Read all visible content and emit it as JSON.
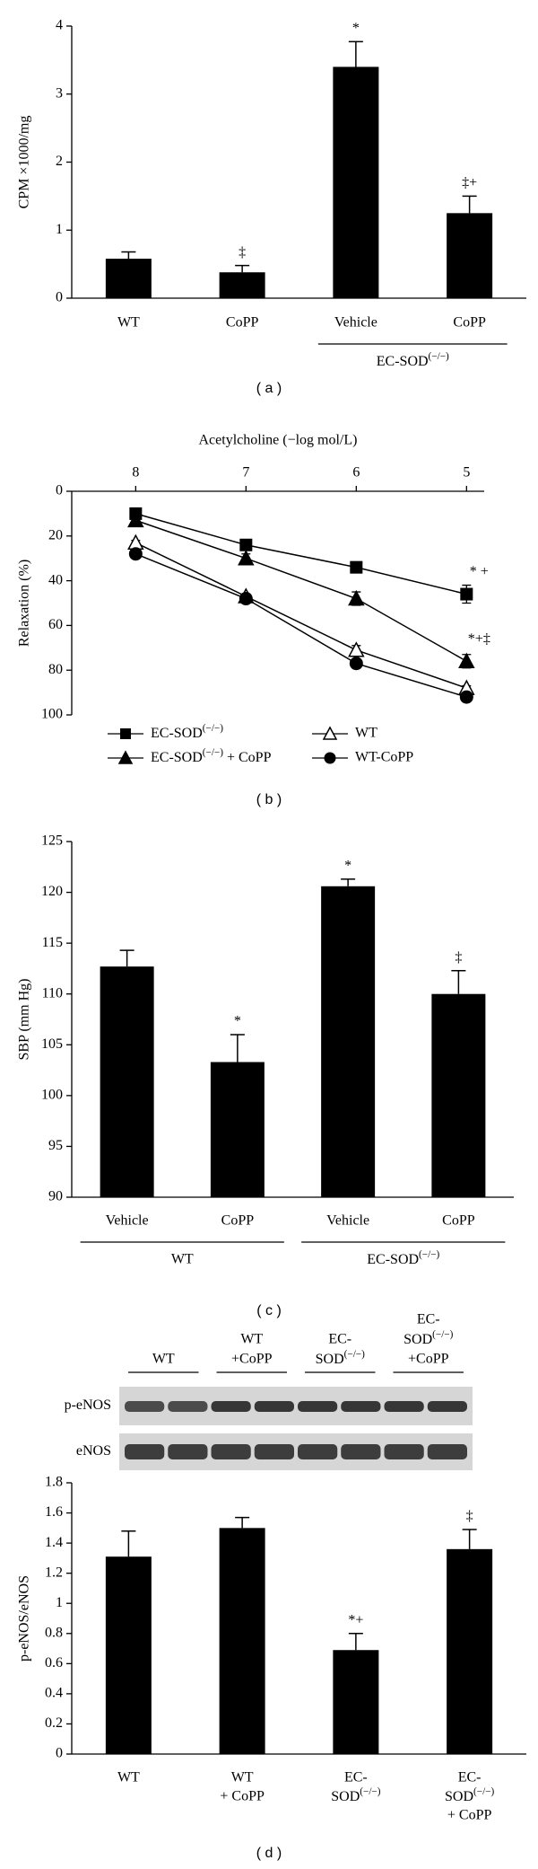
{
  "chart_data": [
    {
      "type": "bar",
      "ylabel": "CPM ×1000/mg",
      "panel_label": "( a )",
      "categories": [
        [
          "WT"
        ],
        [
          "CoPP"
        ],
        [
          "Vehicle"
        ],
        [
          "CoPP"
        ]
      ],
      "values": [
        0.58,
        0.38,
        3.4,
        1.25
      ],
      "errors": [
        0.1,
        0.1,
        0.37,
        0.25
      ],
      "annotations": [
        null,
        "‡",
        "*",
        "‡+"
      ],
      "groups": [
        {
          "label": "EC-SOD(−/−)",
          "span": [
            2,
            3
          ]
        }
      ],
      "color": "#000000",
      "ylim": [
        0,
        4
      ],
      "yticks": [
        0,
        1,
        2,
        3,
        4
      ]
    },
    {
      "type": "line",
      "title": "Acetylcholine (−log mol/L)",
      "ylabel": "Relaxation (%)",
      "panel_label": "( b )",
      "x": [
        8,
        7,
        6,
        5
      ],
      "xlim": [
        8.58,
        4.84
      ],
      "xticks": [
        8,
        7,
        6,
        5
      ],
      "ylim": [
        100,
        0
      ],
      "yticks": [
        0,
        20,
        40,
        60,
        80,
        100
      ],
      "series": [
        {
          "name": "EC-SOD(−/−)",
          "color": "#000000",
          "marker": "square",
          "values": [
            10,
            24,
            34,
            46
          ],
          "errors": [
            1,
            2,
            1,
            4
          ],
          "annotation": "* +"
        },
        {
          "name": "EC-SOD(−/−) + CoPP",
          "color": "#000000",
          "marker": "triangle",
          "values": [
            13,
            30,
            48,
            76
          ],
          "errors": [
            1,
            2,
            3,
            3
          ],
          "annotation": "*+‡"
        },
        {
          "name": "WT",
          "color": "#000000",
          "marker": "triangle-open",
          "values": [
            23,
            47,
            71,
            88
          ],
          "errors": [
            1,
            1,
            2,
            1
          ]
        },
        {
          "name": "WT-CoPP",
          "color": "#000000",
          "marker": "circle",
          "values": [
            28,
            48,
            77,
            92
          ],
          "errors": [
            1,
            1,
            2,
            2
          ]
        }
      ]
    },
    {
      "type": "bar",
      "ylabel": "SBP (mm Hg)",
      "panel_label": "( c )",
      "categories": [
        [
          "Vehicle"
        ],
        [
          "CoPP"
        ],
        [
          "Vehicle"
        ],
        [
          "CoPP"
        ]
      ],
      "values": [
        112.7,
        103.3,
        120.6,
        110
      ],
      "errors": [
        1.6,
        2.7,
        0.7,
        2.3
      ],
      "annotations": [
        null,
        "*",
        "*",
        "‡"
      ],
      "groups": [
        {
          "label": "WT",
          "span": [
            0,
            1
          ]
        },
        {
          "label": "EC-SOD(−/−)",
          "span": [
            2,
            3
          ]
        }
      ],
      "color": "#000000",
      "ylim": [
        90,
        125
      ],
      "yticks": [
        90,
        95,
        100,
        105,
        110,
        115,
        120,
        125
      ]
    },
    {
      "type": "bar",
      "ylabel": "p-eNOS/eNOS",
      "panel_label": "( d )",
      "blot": {
        "lanes": [
          [
            "WT"
          ],
          [
            "WT",
            "+CoPP"
          ],
          [
            "EC-",
            "SOD(−/−)"
          ],
          [
            "EC-",
            "SOD(−/−)",
            "+CoPP"
          ]
        ],
        "rows": [
          "p-eNOS",
          "eNOS"
        ]
      },
      "categories": [
        [
          "WT"
        ],
        [
          "WT",
          "+ CoPP"
        ],
        [
          "EC-",
          "SOD(−/−)"
        ],
        [
          "EC-",
          "SOD(−/−)",
          "+ CoPP"
        ]
      ],
      "values": [
        1.31,
        1.5,
        0.69,
        1.36
      ],
      "errors": [
        0.17,
        0.07,
        0.11,
        0.13
      ],
      "annotations": [
        null,
        null,
        "*+",
        "‡"
      ],
      "color": "#000000",
      "ylim": [
        0,
        1.8
      ],
      "yticks": [
        0,
        0.2,
        0.4,
        0.6,
        0.8,
        1,
        1.2,
        1.4,
        1.6,
        1.8
      ]
    }
  ]
}
